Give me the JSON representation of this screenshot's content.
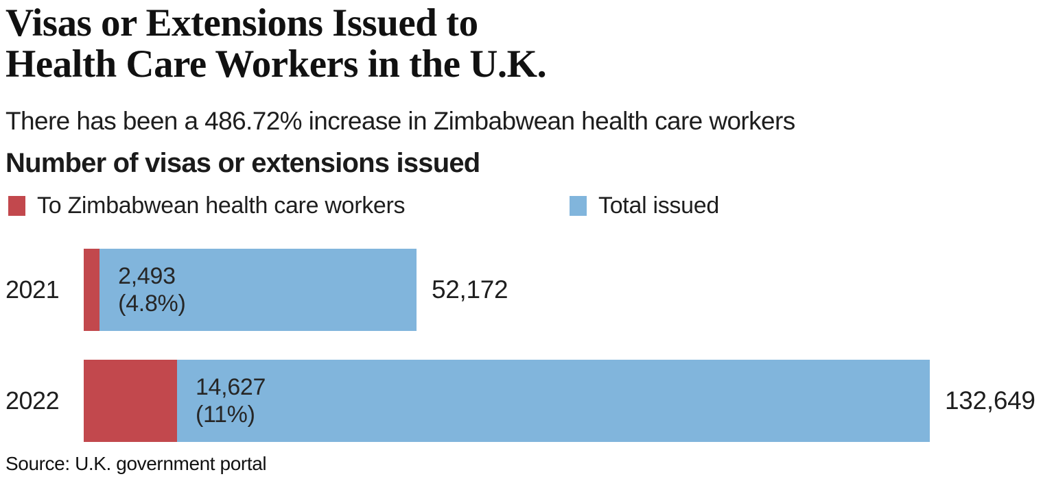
{
  "title": {
    "line1": "Visas or Extensions Issued to",
    "line2": "Health Care Workers in the U.K."
  },
  "subtitle": "There has been a 486.72% increase in Zimbabwean health care workers",
  "axis_heading": "Number of visas or extensions issued",
  "legend": {
    "items": [
      {
        "label": "To Zimbabwean health care workers"
      },
      {
        "label": "Total issued"
      }
    ]
  },
  "colors": {
    "zimbabwean": "#c2484d",
    "total": "#81b5dc"
  },
  "chart_data": {
    "type": "bar",
    "orientation": "horizontal",
    "stacked": true,
    "title": "Number of visas or extensions issued",
    "categories": [
      "2021",
      "2022"
    ],
    "series": [
      {
        "name": "To Zimbabwean health care workers",
        "values": [
          2493,
          14627
        ],
        "color": "#c2484d"
      },
      {
        "name": "Total issued",
        "values": [
          52172,
          132649
        ],
        "color": "#81b5dc"
      }
    ],
    "rows": [
      {
        "year": "2021",
        "zimbabwean": 2493,
        "zimbabwean_label": "2,493",
        "zimbabwean_pct_label": "(4.8%)",
        "total": 52172,
        "total_label": "52,172"
      },
      {
        "year": "2022",
        "zimbabwean": 14627,
        "zimbabwean_label": "14,627",
        "zimbabwean_pct_label": "(11%)",
        "total": 132649,
        "total_label": "132,649"
      }
    ],
    "xlim": [
      0,
      132649
    ],
    "legend_position": "top",
    "grid": false
  },
  "source": "Source: U.K. government portal"
}
